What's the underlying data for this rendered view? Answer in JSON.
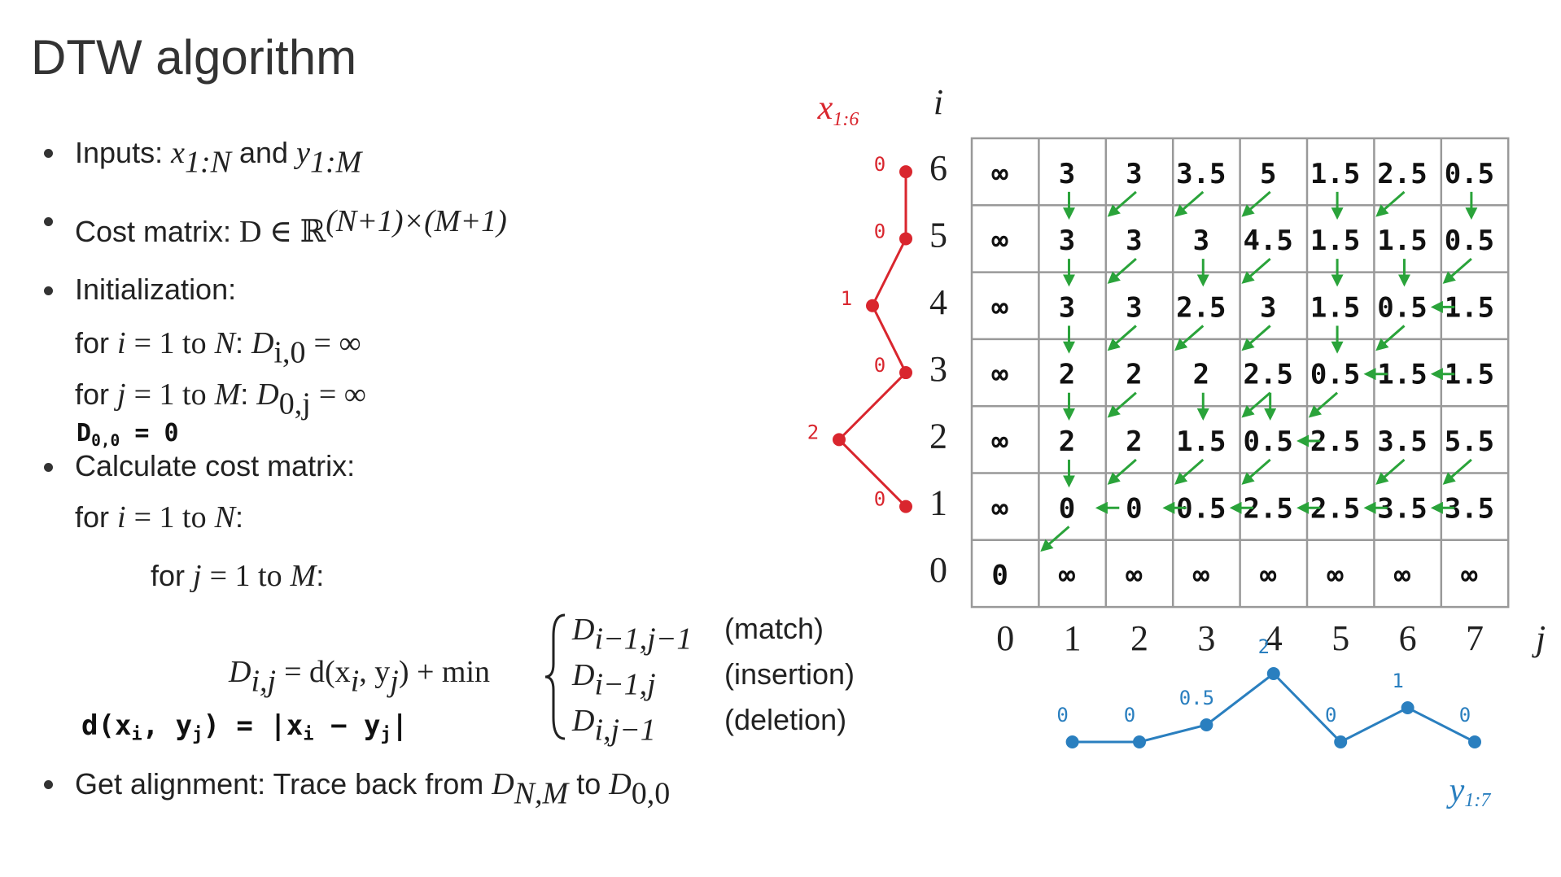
{
  "title": "DTW algorithm",
  "inputs": {
    "label": "Inputs:",
    "x": "x",
    "x_sub": "1:N",
    "and": "and",
    "y": "y",
    "y_sub": "1:M"
  },
  "cost_matrix": {
    "label": "Cost matrix:",
    "symbol": "D ∈ ℝ",
    "dims": "(N+1)×(M+1)"
  },
  "initialization": {
    "label": "Initialization:",
    "rows": [
      {
        "for": "for",
        "var": "i",
        "range": "= 1 to",
        "end": "N",
        "lhs": "D",
        "sub": "i,0",
        "rhs": "= ∞"
      },
      {
        "for": "for",
        "var": "j",
        "range": "= 1 to",
        "end": "M",
        "lhs": "D",
        "sub": "0,j",
        "rhs": "= ∞"
      }
    ],
    "base": {
      "lhs": "D",
      "sub": "0,0",
      "rhs": "= 0"
    }
  },
  "calculate": {
    "label": "Calculate cost matrix:",
    "outer": {
      "for": "for",
      "var": "i",
      "range": "= 1 to",
      "end": "N"
    },
    "inner": {
      "for": "for",
      "var": "j",
      "range": "= 1 to",
      "end": "M"
    },
    "formula": [
      "D",
      "i,j",
      "= d(x",
      "i",
      ", y",
      "j",
      ") + min"
    ],
    "cases": [
      {
        "term": "D",
        "sub": "i−1,j−1",
        "label": "(match)"
      },
      {
        "term": "D",
        "sub": "i−1,j",
        "label": "(insertion)"
      },
      {
        "term": "D",
        "sub": "i,j−1",
        "label": "(deletion)"
      }
    ]
  },
  "distance_note": [
    "d(x",
    "i",
    ", y",
    "j",
    ") = |x",
    "i",
    " − y",
    "j",
    "|"
  ],
  "alignment": {
    "label": "Get alignment:",
    "text": "Trace back from",
    "from": "D",
    "from_sub": "N,M",
    "to": "to",
    "to_term": "D",
    "to_sub": "0,0"
  },
  "grid": {
    "i_label": "i",
    "j_label": "j",
    "row_index": [
      6,
      5,
      4,
      3,
      2,
      1,
      0
    ],
    "col_index": [
      0,
      1,
      2,
      3,
      4,
      5,
      6,
      7
    ],
    "cells": [
      [
        "∞",
        3,
        3,
        3.5,
        5,
        1.5,
        2.5,
        0.5
      ],
      [
        "∞",
        3,
        3,
        3,
        4.5,
        1.5,
        1.5,
        0.5
      ],
      [
        "∞",
        3,
        3,
        2.5,
        3,
        1.5,
        0.5,
        1.5
      ],
      [
        "∞",
        2,
        2,
        2,
        2.5,
        0.5,
        1.5,
        1.5
      ],
      [
        "∞",
        2,
        2,
        1.5,
        0.5,
        2.5,
        3.5,
        5.5
      ],
      [
        "∞",
        0,
        0,
        0.5,
        2.5,
        2.5,
        3.5,
        3.5
      ],
      [
        0,
        "∞",
        "∞",
        "∞",
        "∞",
        "∞",
        "∞",
        "∞"
      ]
    ]
  },
  "x_sequence": {
    "label": "x",
    "label_sub": "1:6",
    "values": [
      0,
      2,
      0,
      1,
      0,
      0
    ]
  },
  "y_sequence": {
    "label": "y",
    "label_sub": "1:7",
    "values": [
      0,
      0,
      0.5,
      2,
      0,
      1,
      0
    ]
  }
}
